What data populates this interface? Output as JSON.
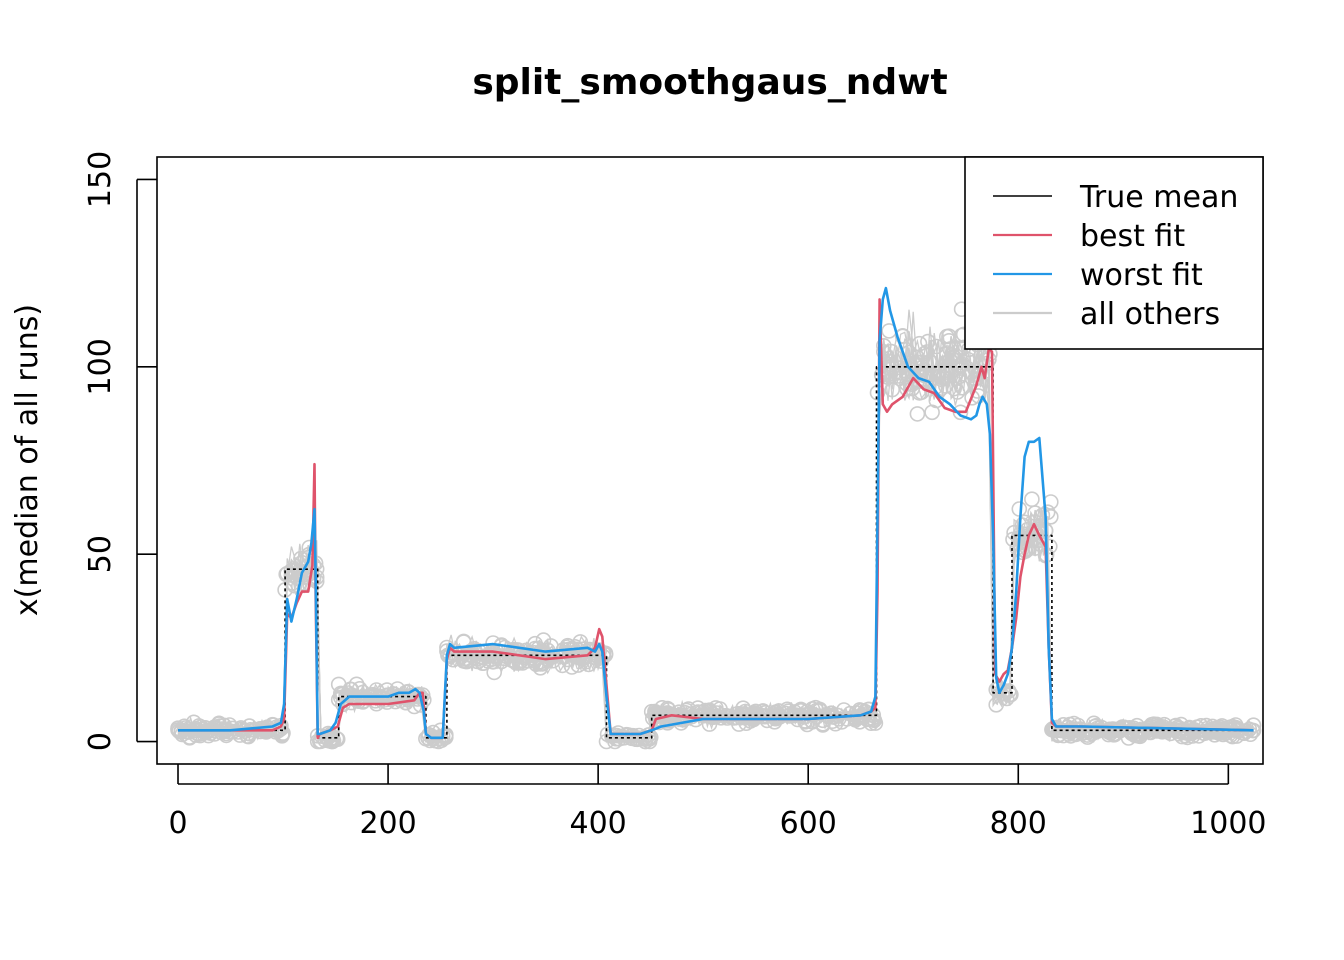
{
  "chart_data": {
    "type": "line",
    "title": "split_smoothgaus_ndwt",
    "xlabel": "",
    "ylabel": "x(median of all runs)",
    "xlim": [
      -20,
      1033
    ],
    "ylim": [
      -6,
      156
    ],
    "x_ticks": [
      0,
      200,
      400,
      600,
      800,
      1000
    ],
    "y_ticks": [
      0,
      50,
      100,
      150
    ],
    "grid": false,
    "legend_position": "top-right",
    "legend": [
      {
        "label": "True mean",
        "color": "#000000"
      },
      {
        "label": "best fit",
        "color": "#DF536B"
      },
      {
        "label": "worst fit",
        "color": "#2297E6"
      },
      {
        "label": "all others",
        "color": "#CCCCCC"
      }
    ],
    "colors": {
      "true_mean": "#000000",
      "best_fit": "#DF536B",
      "worst_fit": "#2297E6",
      "others": "#CCCCCC",
      "points": "#CCCCCC"
    },
    "series": [
      {
        "name": "True mean",
        "x": [
          0,
          102,
          102,
          133,
          133,
          153,
          153,
          236,
          236,
          256,
          256,
          408,
          408,
          451,
          451,
          665,
          665,
          776,
          776,
          794,
          794,
          832,
          832,
          1024
        ],
        "y": [
          3,
          3,
          46,
          46,
          1,
          1,
          12,
          12,
          1,
          1,
          23,
          23,
          1,
          1,
          7,
          7,
          100,
          100,
          13,
          13,
          55,
          55,
          3,
          3
        ]
      },
      {
        "name": "best fit",
        "x": [
          0,
          60,
          90,
          98,
          101,
          104,
          108,
          113,
          118,
          124,
          128,
          130,
          131,
          133,
          135,
          145,
          152,
          157,
          163,
          200,
          225,
          230,
          233,
          236,
          241,
          252,
          256,
          259,
          263,
          300,
          350,
          390,
          397,
          401,
          404,
          408,
          412,
          440,
          451,
          455,
          470,
          500,
          600,
          650,
          660,
          664,
          666,
          668,
          671,
          675,
          680,
          690,
          700,
          710,
          720,
          730,
          740,
          750,
          760,
          765,
          768,
          772,
          775,
          778,
          782,
          786,
          790,
          794,
          798,
          802,
          806,
          810,
          815,
          820,
          826,
          829,
          832,
          836,
          860,
          1024
        ],
        "y": [
          3,
          3,
          3,
          4,
          6,
          34,
          33,
          37,
          40,
          40,
          47,
          74,
          40,
          1,
          2,
          3,
          4,
          9,
          10,
          10,
          11,
          13,
          13,
          2,
          1,
          1,
          22,
          25,
          24,
          24,
          22,
          23,
          25,
          30,
          28,
          15,
          2,
          2,
          3,
          6,
          7,
          6,
          6,
          7,
          8,
          9,
          40,
          118,
          90,
          88,
          90,
          92,
          97,
          94,
          93,
          89,
          88,
          88,
          95,
          100,
          97,
          105,
          104,
          18,
          16,
          18,
          19,
          25,
          33,
          44,
          50,
          55,
          58,
          55,
          52,
          25,
          5,
          4,
          4,
          3
        ]
      },
      {
        "name": "worst fit",
        "x": [
          0,
          50,
          90,
          98,
          101,
          104,
          108,
          113,
          118,
          124,
          127,
          130,
          131,
          133,
          135,
          145,
          150,
          155,
          163,
          200,
          210,
          220,
          226,
          230,
          234,
          236,
          241,
          252,
          256,
          259,
          263,
          300,
          350,
          390,
          397,
          401,
          404,
          408,
          412,
          440,
          451,
          460,
          500,
          600,
          650,
          660,
          664,
          666,
          668,
          671,
          674,
          678,
          685,
          695,
          705,
          715,
          725,
          735,
          745,
          755,
          760,
          763,
          766,
          770,
          773,
          776,
          779,
          782,
          786,
          790,
          794,
          798,
          802,
          806,
          810,
          815,
          820,
          826,
          829,
          832,
          836,
          860,
          1024
        ],
        "y": [
          3,
          3,
          4,
          5,
          10,
          38,
          32,
          38,
          45,
          48,
          53,
          62,
          45,
          2,
          2,
          3,
          5,
          10,
          12,
          12,
          13,
          13,
          14,
          13,
          8,
          2,
          1,
          1,
          23,
          26,
          25,
          26,
          24,
          25,
          24,
          26,
          24,
          12,
          2,
          2,
          3,
          4,
          6,
          6,
          7,
          8,
          12,
          60,
          107,
          118,
          121,
          115,
          108,
          100,
          97,
          96,
          92,
          90,
          87,
          86,
          87,
          90,
          92,
          90,
          82,
          55,
          17,
          13,
          15,
          18,
          25,
          40,
          60,
          76,
          80,
          80,
          81,
          60,
          25,
          6,
          4,
          4,
          3
        ]
      }
    ]
  }
}
